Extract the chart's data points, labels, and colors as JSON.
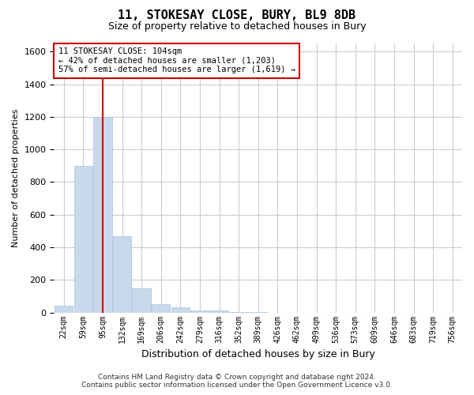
{
  "title": "11, STOKESAY CLOSE, BURY, BL9 8DB",
  "subtitle": "Size of property relative to detached houses in Bury",
  "xlabel": "Distribution of detached houses by size in Bury",
  "ylabel": "Number of detached properties",
  "footer_line1": "Contains HM Land Registry data © Crown copyright and database right 2024.",
  "footer_line2": "Contains public sector information licensed under the Open Government Licence v3.0.",
  "bin_labels": [
    "22sqm",
    "59sqm",
    "95sqm",
    "132sqm",
    "169sqm",
    "206sqm",
    "242sqm",
    "279sqm",
    "316sqm",
    "352sqm",
    "389sqm",
    "426sqm",
    "462sqm",
    "499sqm",
    "536sqm",
    "573sqm",
    "609sqm",
    "646sqm",
    "683sqm",
    "719sqm",
    "756sqm"
  ],
  "bar_values": [
    40,
    900,
    1200,
    470,
    150,
    50,
    30,
    15,
    15,
    5,
    5,
    0,
    0,
    0,
    0,
    0,
    0,
    0,
    0,
    0,
    0
  ],
  "bar_color": "#c9d9ec",
  "bar_edge_color": "#a8c0d8",
  "ylim": [
    0,
    1650
  ],
  "yticks": [
    0,
    200,
    400,
    600,
    800,
    1000,
    1200,
    1400,
    1600
  ],
  "red_line_x": 2,
  "annotation_text_line1": "11 STOKESAY CLOSE: 104sqm",
  "annotation_text_line2": "← 42% of detached houses are smaller (1,203)",
  "annotation_text_line3": "57% of semi-detached houses are larger (1,619) →",
  "annotation_box_color": "#ffffff",
  "annotation_box_edge_color": "#cc0000",
  "red_line_color": "#cc0000",
  "grid_color": "#cccccc",
  "background_color": "#ffffff"
}
